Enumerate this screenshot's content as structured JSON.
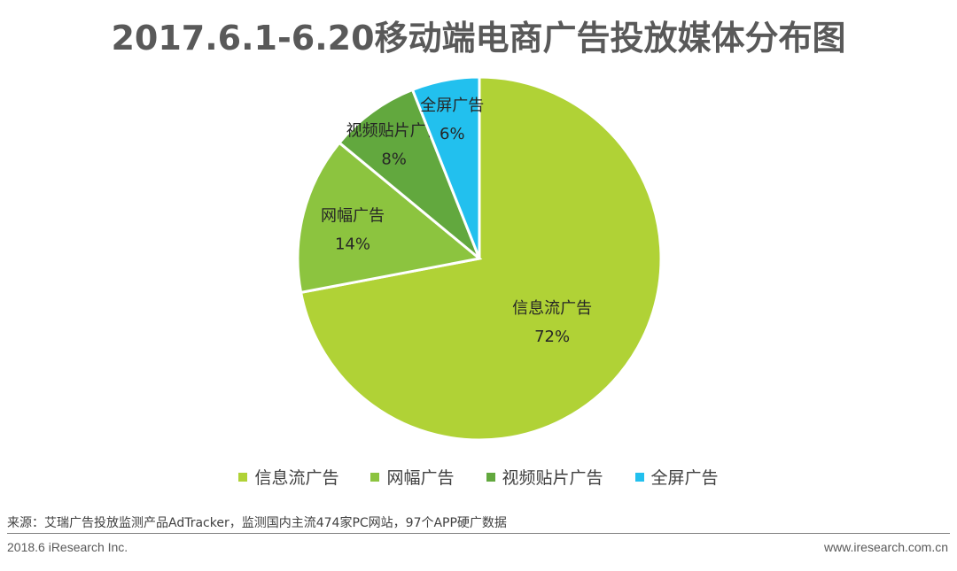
{
  "title": "2017.6.1-6.20移动端电商广告投放媒体分布图",
  "chart_data": {
    "type": "pie",
    "title": "2017.6.1-6.20移动端电商广告投放媒体分布图",
    "slices": [
      {
        "label": "信息流广告",
        "value": 72,
        "display": "72%",
        "color": "#b0d236"
      },
      {
        "label": "网幅广告",
        "value": 14,
        "display": "14%",
        "color": "#8cc43f"
      },
      {
        "label": "视频贴片广告",
        "value": 8,
        "display": "8%",
        "color": "#62a83e"
      },
      {
        "label": "全屏广告",
        "value": 6,
        "display": "6%",
        "color": "#22c0ee"
      }
    ],
    "legend_position": "bottom"
  },
  "legend": [
    {
      "label": "信息流广告",
      "color": "#b0d236"
    },
    {
      "label": "网幅广告",
      "color": "#8cc43f"
    },
    {
      "label": "视频贴片广告",
      "color": "#62a83e"
    },
    {
      "label": "全屏广告",
      "color": "#22c0ee"
    }
  ],
  "source": "来源：艾瑞广告投放监测产品AdTracker，监测国内主流474家PC网站，97个APP硬广数据",
  "footer": {
    "left": "2018.6 iResearch Inc.",
    "right": "www.iresearch.com.cn"
  }
}
